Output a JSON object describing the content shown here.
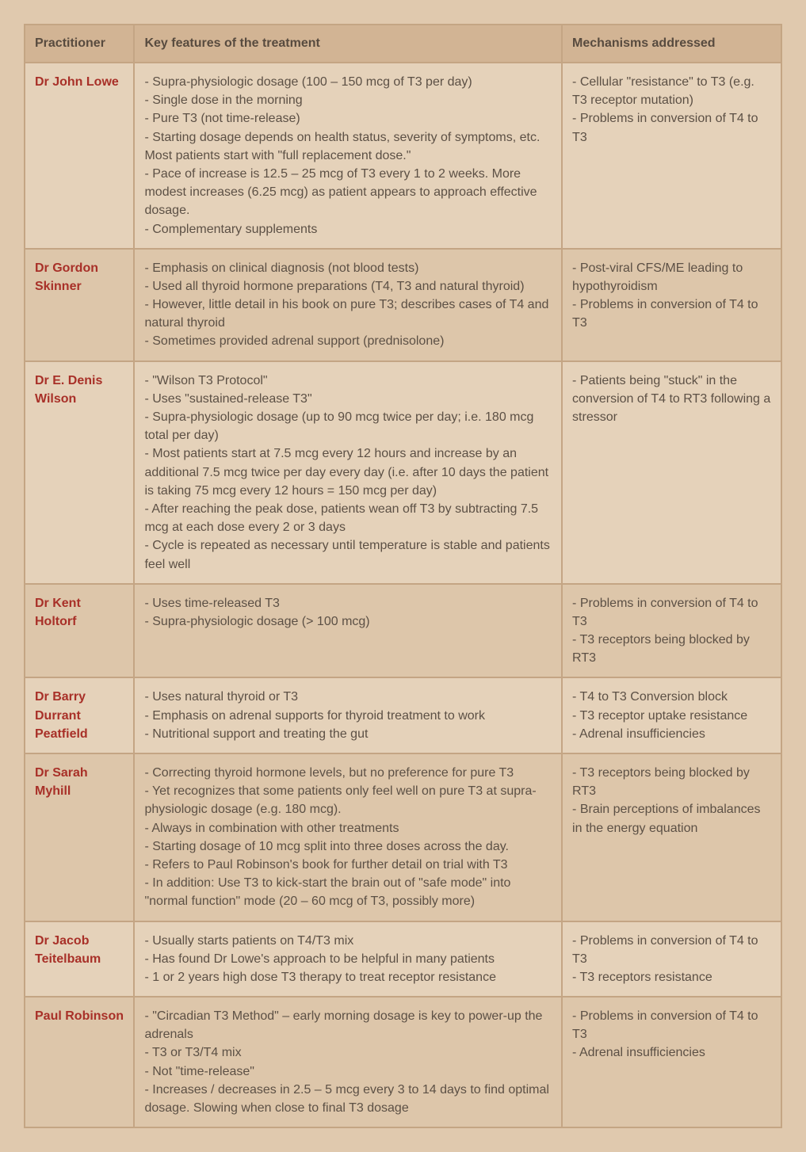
{
  "table": {
    "headers": {
      "practitioner": "Practitioner",
      "features": "Key features of the treatment",
      "mechanisms": "Mechanisms addressed"
    },
    "rows": [
      {
        "practitioner": "Dr John Lowe",
        "features": "- Supra-physiologic dosage (100 – 150 mcg of T3 per day)\n - Single dose in the morning\n - Pure T3 (not time-release)\n - Starting dosage depends on health status, severity of symptoms, etc. Most patients start with \"full replacement dose.\"\n - Pace of increase is 12.5 – 25 mcg of T3 every 1 to 2 weeks. More modest increases (6.25 mcg) as patient appears to approach effective dosage.\n - Complementary supplements",
        "mechanisms": "- Cellular \"resistance\" to T3 (e.g. T3 receptor mutation)\n - Problems in conversion of T4 to T3"
      },
      {
        "practitioner": "Dr Gordon Skinner",
        "features": "- Emphasis on clinical diagnosis (not blood tests)\n - Used all thyroid hormone preparations (T4, T3 and natural thyroid)\n - However, little detail in his book on pure T3; describes cases of T4 and natural thyroid\n - Sometimes provided adrenal support (prednisolone)",
        "mechanisms": "- Post-viral CFS/ME leading to hypothyroidism\n - Problems in conversion of T4 to T3"
      },
      {
        "practitioner": "Dr E. Denis Wilson",
        "features": "- \"Wilson T3 Protocol\"\n - Uses \"sustained-release T3\"\n - Supra-physiologic dosage (up to 90 mcg twice per day; i.e. 180 mcg total per day)\n - Most patients start at 7.5 mcg every 12 hours and increase by an additional 7.5 mcg twice per day every day (i.e. after 10 days the patient is taking 75 mcg every 12 hours = 150 mcg per day)\n - After reaching the peak dose, patients wean off T3 by subtracting 7.5 mcg at each dose every 2 or 3 days\n - Cycle is repeated as necessary until temperature is stable and patients feel well",
        "mechanisms": "- Patients being \"stuck\" in the conversion of T4 to RT3 following a stressor"
      },
      {
        "practitioner": "Dr Kent Holtorf",
        "features": "- Uses time-released T3\n - Supra-physiologic dosage (> 100 mcg)",
        "mechanisms": "- Problems in conversion of T4 to T3\n - T3 receptors being blocked by RT3"
      },
      {
        "practitioner": "Dr Barry Durrant Peatfield",
        "features": "- Uses natural thyroid or T3\n - Emphasis on adrenal supports for thyroid treatment to work\n - Nutritional support and treating the gut",
        "mechanisms": "- T4 to T3 Conversion block\n - T3 receptor uptake resistance\n - Adrenal insufficiencies"
      },
      {
        "practitioner": "Dr Sarah Myhill",
        "features": "- Correcting thyroid hormone levels, but no preference for pure T3\n - Yet recognizes that some patients only feel well on pure T3 at supra-physiologic dosage (e.g. 180 mcg).\n - Always in combination with other treatments\n - Starting dosage of 10 mcg split into three doses across the day.\n - Refers to Paul Robinson's book for further detail on trial with T3\n - In addition: Use T3 to kick-start the brain out of \"safe mode\" into \"normal function\" mode (20 – 60 mcg of T3, possibly more)",
        "mechanisms": "- T3 receptors being blocked by RT3\n - Brain perceptions of imbalances in the energy equation"
      },
      {
        "practitioner": "Dr Jacob Teitelbaum",
        "features": "- Usually starts patients on T4/T3 mix\n - Has found Dr Lowe's approach to be helpful in many patients\n - 1 or 2 years high dose T3 therapy to treat receptor resistance",
        "mechanisms": "- Problems in conversion of T4 to T3\n - T3 receptors resistance"
      },
      {
        "practitioner": "Paul Robinson",
        "features": "- \"Circadian T3 Method\" – early morning dosage is key to power-up the adrenals\n - T3 or T3/T4 mix\n - Not \"time-release\"\n - Increases / decreases in 2.5 – 5 mcg every 3 to 14 days to find optimal dosage. Slowing when close to final T3 dosage",
        "mechanisms": "- Problems in conversion of T4 to T3\n - Adrenal insufficiencies"
      }
    ]
  },
  "colors": {
    "page_bg": "#e0c9ae",
    "header_bg": "#d2b494",
    "row_odd_bg": "#e5d2ba",
    "row_even_bg": "#ddc6aa",
    "border": "#c4a584",
    "header_text": "#584b3f",
    "practitioner_text": "#a83028",
    "body_text": "#5c5045"
  }
}
